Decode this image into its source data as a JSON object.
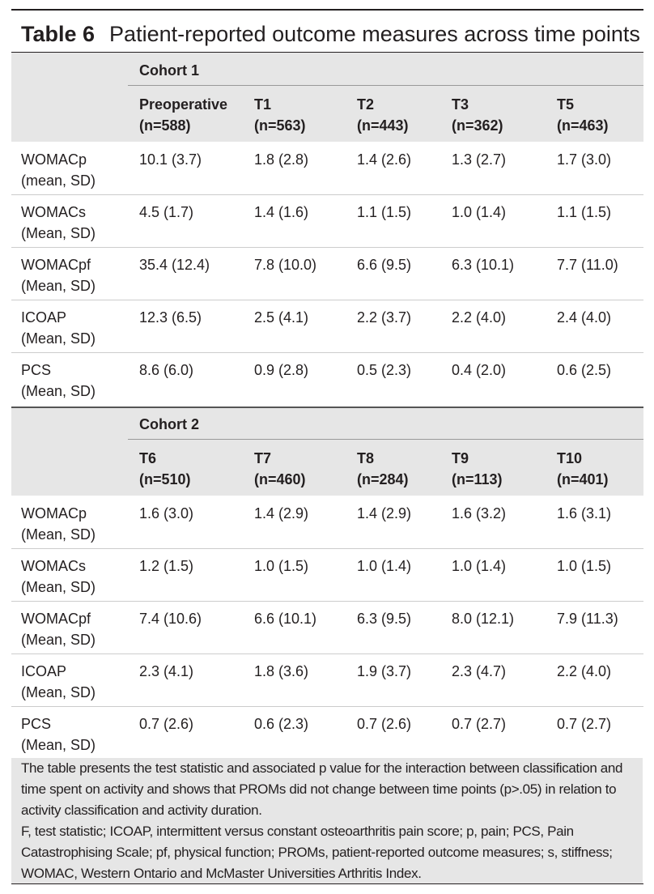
{
  "title": {
    "label": "Table 6",
    "text": "Patient-reported outcome measures across time points"
  },
  "cohorts": [
    {
      "name": "Cohort 1",
      "headers": [
        {
          "label": "Preoperative",
          "n": "(n=588)"
        },
        {
          "label": "T1",
          "n": "(n=563)"
        },
        {
          "label": "T2",
          "n": "(n=443)"
        },
        {
          "label": "T3",
          "n": "(n=362)"
        },
        {
          "label": "T5",
          "n": "(n=463)"
        }
      ],
      "rows": [
        {
          "measure": "WOMACp",
          "stat": "(mean, SD)",
          "values": [
            "10.1 (3.7)",
            "1.8 (2.8)",
            "1.4 (2.6)",
            "1.3 (2.7)",
            "1.7 (3.0)"
          ]
        },
        {
          "measure": "WOMACs",
          "stat": "(Mean, SD)",
          "values": [
            "4.5 (1.7)",
            "1.4 (1.6)",
            "1.1 (1.5)",
            "1.0 (1.4)",
            "1.1 (1.5)"
          ]
        },
        {
          "measure": "WOMACpf",
          "stat": "(Mean, SD)",
          "values": [
            "35.4 (12.4)",
            "7.8 (10.0)",
            "6.6 (9.5)",
            "6.3 (10.1)",
            "7.7 (11.0)"
          ]
        },
        {
          "measure": "ICOAP",
          "stat": "(Mean, SD)",
          "values": [
            "12.3 (6.5)",
            "2.5 (4.1)",
            "2.2 (3.7)",
            "2.2 (4.0)",
            "2.4 (4.0)"
          ]
        },
        {
          "measure": "PCS",
          "stat": "(Mean, SD)",
          "values": [
            "8.6 (6.0)",
            "0.9 (2.8)",
            "0.5 (2.3)",
            "0.4 (2.0)",
            "0.6 (2.5)"
          ]
        }
      ]
    },
    {
      "name": "Cohort 2",
      "headers": [
        {
          "label": "T6",
          "n": "(n=510)"
        },
        {
          "label": "T7",
          "n": "(n=460)"
        },
        {
          "label": "T8",
          "n": "(n=284)"
        },
        {
          "label": "T9",
          "n": "(n=113)"
        },
        {
          "label": "T10",
          "n": "(n=401)"
        }
      ],
      "rows": [
        {
          "measure": "WOMACp",
          "stat": "(Mean, SD)",
          "values": [
            "1.6 (3.0)",
            "1.4 (2.9)",
            "1.4 (2.9)",
            "1.6 (3.2)",
            "1.6 (3.1)"
          ]
        },
        {
          "measure": "WOMACs",
          "stat": "(Mean, SD)",
          "values": [
            "1.2 (1.5)",
            "1.0 (1.5)",
            "1.0 (1.4)",
            "1.0 (1.4)",
            "1.0 (1.5)"
          ]
        },
        {
          "measure": "WOMACpf",
          "stat": "(Mean, SD)",
          "values": [
            "7.4 (10.6)",
            "6.6 (10.1)",
            "6.3 (9.5)",
            "8.0 (12.1)",
            "7.9 (11.3)"
          ]
        },
        {
          "measure": "ICOAP",
          "stat": "(Mean, SD)",
          "values": [
            "2.3 (4.1)",
            "1.8 (3.6)",
            "1.9 (3.7)",
            "2.3 (4.7)",
            "2.2 (4.0)"
          ]
        },
        {
          "measure": "PCS",
          "stat": "(Mean, SD)",
          "values": [
            "0.7 (2.6)",
            "0.6 (2.3)",
            "0.7 (2.6)",
            "0.7 (2.7)",
            "0.7 (2.7)"
          ]
        }
      ]
    }
  ],
  "footnotes": [
    "The table presents the test statistic and associated p value for the interaction between classification and time spent on activity and shows that PROMs did not change between time points (p>.05) in relation to activity classification and activity duration.",
    "F, test statistic; ICOAP, intermittent versus constant osteoarthritis pain score; p, pain; PCS, Pain Catastrophising Scale; pf, physical function; PROMs, patient-reported outcome measures; s, stiffness; WOMAC, Western Ontario and McMaster Universities Arthritis Index."
  ]
}
